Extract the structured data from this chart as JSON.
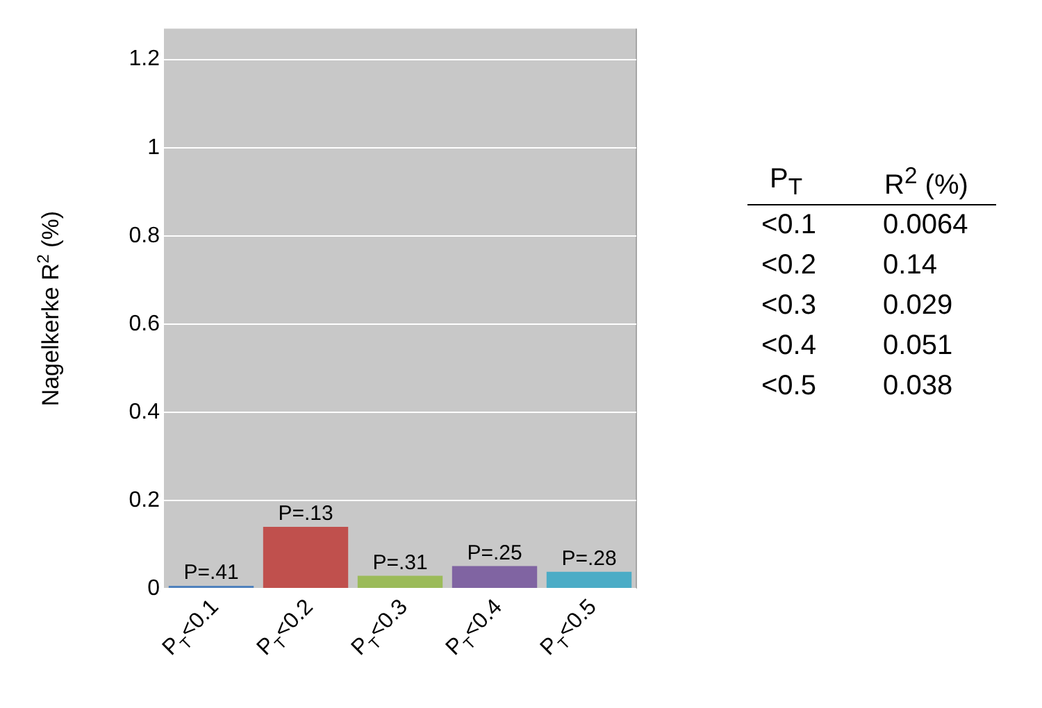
{
  "chart_data": {
    "type": "bar",
    "ylabel": "Nagelkerke R$^{2}$ (%)",
    "categories": [
      "P$_{T}$<0.1",
      "P$_{T}$<0.2",
      "P$_{T}$<0.3",
      "P$_{T}$<0.4",
      "P$_{T}$<0.5"
    ],
    "values": [
      0.0064,
      0.14,
      0.029,
      0.051,
      0.038
    ],
    "colors": [
      "#4f81bd",
      "#c0504d",
      "#9bbb59",
      "#8064a2",
      "#4bacc6"
    ],
    "ylim": [
      0,
      1.27
    ],
    "yticks": [
      0,
      0.2,
      0.4,
      0.6,
      0.8,
      1,
      1.2
    ],
    "grid": "y",
    "annotations": [
      {
        "text": "P=.41",
        "x": "P$_{T}$<0.1",
        "y": 0.0064
      },
      {
        "text": "P=.13",
        "x": "P$_{T}$<0.2",
        "y": 0.14
      },
      {
        "text": "P=.31",
        "x": "P$_{T}$<0.3",
        "y": 0.029
      },
      {
        "text": "P=.25",
        "x": "P$_{T}$<0.4",
        "y": 0.051
      },
      {
        "text": "P=.28",
        "x": "P$_{T}$<0.5",
        "y": 0.038
      },
      "P$_{T}$",
      "R$^{2}$ (%)",
      "<0.1",
      "0.0064",
      "<0.2",
      "0.14",
      "<0.3",
      "0.029",
      "<0.4",
      "0.051",
      "<0.5",
      "0.038"
    ]
  }
}
